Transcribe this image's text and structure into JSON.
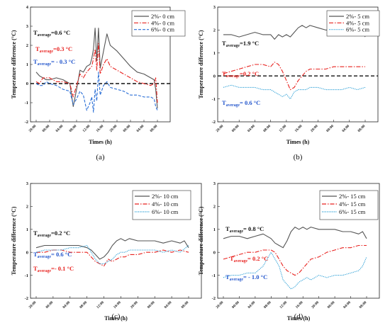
{
  "chart_data": [
    {
      "id": "a",
      "type": "line",
      "panel_label": "(a)",
      "xlabel": "Times (h)",
      "ylabel": "Temperature difference (°C)",
      "ylim": [
        -2,
        4
      ],
      "yticks": [
        -2,
        -1,
        0,
        1,
        2,
        3,
        4
      ],
      "x_ticks": [
        "20:00",
        "00:00",
        "04:00",
        "08:00",
        "12:00",
        "16:00",
        "20:00",
        "00:00",
        "04:00",
        "08:00"
      ],
      "zero_line": true,
      "legend": {
        "placement": "top-right"
      },
      "annotations": [
        {
          "prefix": "T",
          "sub": "average",
          "text": "=0.6 °C",
          "color": "#111111"
        },
        {
          "prefix": "T",
          "sub": "average",
          "text": "=0.3 °C",
          "color": "#e8221f"
        },
        {
          "prefix": "T",
          "sub": "average",
          "text": "= - 0.3 °C",
          "color": "#2255cc"
        }
      ],
      "series": [
        {
          "name": "2%- 0 cm",
          "color": "#555555",
          "dash": "solid",
          "x": [
            0,
            1,
            2,
            3,
            4,
            6,
            8,
            10,
            11,
            12,
            13,
            14,
            15,
            16,
            16.5,
            17,
            17.5,
            18,
            18.5,
            19,
            20,
            21,
            22,
            24,
            26,
            28,
            30,
            32,
            34,
            35,
            35.5,
            36
          ],
          "y": [
            0.6,
            0.4,
            0.3,
            0.2,
            0.2,
            0.3,
            0.2,
            0.0,
            -1.2,
            -0.3,
            0.7,
            0.6,
            0.9,
            1.0,
            1.3,
            1.8,
            2.9,
            1.2,
            2.9,
            0.8,
            1.7,
            2.6,
            2.0,
            1.7,
            1.3,
            0.9,
            0.6,
            0.5,
            0.3,
            0.2,
            -0.3,
            -1.3
          ]
        },
        {
          "name": "4%- 0 cm",
          "color": "#e8221f",
          "dash": "dashdot",
          "x": [
            0,
            1,
            2,
            3,
            4,
            6,
            8,
            10,
            11,
            12,
            13,
            14,
            15,
            16,
            16.5,
            17,
            17.5,
            18,
            18.5,
            19,
            20,
            21,
            22,
            24,
            26,
            28,
            30,
            32,
            34,
            35,
            35.5,
            36
          ],
          "y": [
            0.1,
            0.0,
            0.3,
            0.3,
            0.3,
            0.1,
            0.1,
            0.0,
            -0.7,
            -0.1,
            0.5,
            0.3,
            0.6,
            0.8,
            0.9,
            1.3,
            1.8,
            0.7,
            2.1,
            0.5,
            1.0,
            1.3,
            0.9,
            0.7,
            0.5,
            0.3,
            0.1,
            0.0,
            -0.1,
            0.0,
            0.3,
            -1.0
          ]
        },
        {
          "name": "6%- 0 cm",
          "color": "#2b6fd6",
          "dash": "dashed",
          "x": [
            0,
            1,
            2,
            3,
            4,
            6,
            8,
            10,
            11,
            12,
            13,
            14,
            15,
            16,
            16.5,
            17,
            17.5,
            18,
            18.5,
            19,
            20,
            21,
            22,
            24,
            26,
            28,
            30,
            32,
            34,
            35,
            35.5,
            36
          ],
          "y": [
            0.0,
            -0.1,
            -0.1,
            0.1,
            0.0,
            -0.1,
            -0.3,
            -0.4,
            -1.1,
            -0.8,
            -0.4,
            -0.6,
            -1.4,
            -1.0,
            -0.7,
            -1.5,
            -0.3,
            -0.9,
            0.6,
            -0.6,
            -0.1,
            0.1,
            -0.2,
            -0.3,
            -0.4,
            -0.6,
            -0.6,
            -0.7,
            -0.7,
            -0.8,
            -1.2,
            -1.4
          ]
        }
      ]
    },
    {
      "id": "b",
      "type": "line",
      "panel_label": "(b)",
      "xlabel": "Times (h)",
      "ylabel": "Temperature difference (°C)",
      "ylim": [
        -2,
        3
      ],
      "yticks": [
        -2,
        -1,
        0,
        1,
        2,
        3
      ],
      "x_ticks": [
        "20:00",
        "00:00",
        "04:00",
        "08:00",
        "12:00",
        "16:00",
        "20:00",
        "00:00",
        "04:00",
        "08:00"
      ],
      "zero_line": true,
      "legend": {
        "placement": "top-right"
      },
      "annotations": [
        {
          "prefix": "T",
          "sub": "average",
          "text": "=1.9 °C",
          "color": "#111111"
        },
        {
          "prefix": "T",
          "sub": "average",
          "text": "=0.2 °C",
          "color": "#e8221f"
        },
        {
          "prefix": "T",
          "sub": "average",
          "text": "= 0.6 °C",
          "color": "#2255cc"
        }
      ],
      "series": [
        {
          "name": "2%- 5 cm",
          "color": "#555555",
          "dash": "solid",
          "x": [
            0,
            2,
            4,
            6,
            8,
            10,
            12,
            13,
            14,
            15,
            16,
            17,
            18,
            19,
            20,
            21,
            22,
            24,
            26,
            28,
            30,
            32,
            34,
            35,
            36
          ],
          "y": [
            1.8,
            1.8,
            1.7,
            1.8,
            1.9,
            1.8,
            1.8,
            1.6,
            1.8,
            1.7,
            1.8,
            1.7,
            1.9,
            2.1,
            2.2,
            2.1,
            2.2,
            2.1,
            2.0,
            2.0,
            1.9,
            1.9,
            1.9,
            2.0,
            1.7
          ]
        },
        {
          "name": "4%- 5 cm",
          "color": "#e8221f",
          "dash": "dashdot",
          "x": [
            0,
            2,
            4,
            6,
            8,
            10,
            12,
            13,
            14,
            15,
            16,
            17,
            18,
            19,
            20,
            21,
            22,
            24,
            26,
            28,
            30,
            32,
            34,
            36
          ],
          "y": [
            0.1,
            0.2,
            0.3,
            0.4,
            0.5,
            0.5,
            0.4,
            0.6,
            0.5,
            0.2,
            -0.2,
            -0.6,
            -0.5,
            -0.2,
            0.0,
            0.2,
            0.3,
            0.3,
            0.3,
            0.4,
            0.4,
            0.4,
            0.4,
            0.4
          ]
        },
        {
          "name": "6%- 5 cm",
          "color": "#2b9fd6",
          "dash": "dotted",
          "x": [
            0,
            2,
            4,
            6,
            8,
            10,
            12,
            13,
            14,
            15,
            16,
            17,
            18,
            19,
            20,
            21,
            22,
            24,
            26,
            28,
            30,
            32,
            34,
            36
          ],
          "y": [
            -0.5,
            -0.4,
            -0.5,
            -0.5,
            -0.5,
            -0.6,
            -0.6,
            -0.7,
            -0.8,
            -0.9,
            -0.8,
            -1.0,
            -0.7,
            -0.6,
            -0.6,
            -0.6,
            -0.5,
            -0.5,
            -0.6,
            -0.6,
            -0.6,
            -0.5,
            -0.6,
            -0.5
          ]
        }
      ]
    },
    {
      "id": "c",
      "type": "line",
      "panel_label": "(c)",
      "xlabel": "Times (h)",
      "ylabel": "Temperature difference (°C)",
      "ylim": [
        -2,
        3
      ],
      "yticks": [
        -2,
        -1,
        0,
        1,
        2,
        3
      ],
      "x_ticks": [
        "20:00",
        "00:00",
        "04:00",
        "08:00",
        "12:00",
        "16:00",
        "20:00",
        "00:00",
        "04:00",
        "08:00"
      ],
      "zero_line": false,
      "legend": {
        "placement": "top-right"
      },
      "annotations": [
        {
          "prefix": "T",
          "sub": "average",
          "text": "=0.2 °C",
          "color": "#111111"
        },
        {
          "prefix": "T",
          "sub": "average",
          "text": "= 0.6 °C",
          "color": "#2255cc"
        },
        {
          "prefix": "T",
          "sub": "average",
          "text": "=- 0.1 °C",
          "color": "#e8221f"
        }
      ],
      "series": [
        {
          "name": "2%- 10 cm",
          "color": "#555555",
          "dash": "solid",
          "x": [
            0,
            2,
            4,
            6,
            8,
            10,
            12,
            13,
            14,
            15,
            16,
            17,
            18,
            19,
            20,
            21,
            22,
            24,
            26,
            28,
            30,
            32,
            34,
            35,
            36
          ],
          "y": [
            0.2,
            0.3,
            0.3,
            0.3,
            0.3,
            0.3,
            0.2,
            0.1,
            -0.1,
            -0.3,
            -0.2,
            0.0,
            0.3,
            0.5,
            0.6,
            0.5,
            0.6,
            0.5,
            0.5,
            0.5,
            0.4,
            0.5,
            0.4,
            0.5,
            0.2
          ]
        },
        {
          "name": "4%- 10 cm",
          "color": "#e8221f",
          "dash": "dashdot",
          "x": [
            0,
            2,
            4,
            6,
            8,
            10,
            12,
            13,
            14,
            15,
            16,
            17,
            18,
            19,
            20,
            21,
            22,
            24,
            26,
            28,
            30,
            32,
            34,
            36
          ],
          "y": [
            0.0,
            0.0,
            0.1,
            0.1,
            0.0,
            0.0,
            0.0,
            -0.2,
            -0.4,
            -0.5,
            -0.6,
            -0.3,
            -0.4,
            -0.3,
            -0.2,
            -0.2,
            -0.1,
            -0.1,
            0.0,
            0.0,
            0.1,
            0.0,
            0.1,
            0.0
          ]
        },
        {
          "name": "6%- 10 cm",
          "color": "#2b9fd6",
          "dash": "dotted",
          "x": [
            0,
            2,
            4,
            6,
            8,
            10,
            12,
            13,
            14,
            15,
            16,
            17,
            18,
            19,
            20,
            21,
            22,
            24,
            26,
            28,
            30,
            32,
            34,
            36
          ],
          "y": [
            0.0,
            0.1,
            0.1,
            0.1,
            0.2,
            0.2,
            0.3,
            0.0,
            -0.3,
            -0.5,
            -0.5,
            -0.4,
            -0.3,
            -0.1,
            0.0,
            0.0,
            0.1,
            0.1,
            0.1,
            0.1,
            0.0,
            0.1,
            0.0,
            0.3
          ]
        }
      ]
    },
    {
      "id": "d",
      "type": "line",
      "panel_label": "(d)",
      "xlabel": "Times (h)",
      "ylabel": "Temperature difference (°C)",
      "ylim": [
        -2,
        3
      ],
      "yticks": [
        -2,
        -1,
        0,
        1,
        2,
        3
      ],
      "x_ticks": [
        "20:00",
        "00:00",
        "04:00",
        "08:00",
        "12:00",
        "16:00",
        "20:00",
        "00:00",
        "04:00",
        "08:00"
      ],
      "zero_line": false,
      "legend": {
        "placement": "top-right"
      },
      "annotations": [
        {
          "prefix": "T",
          "sub": "average",
          "text": "= 0.8 °C",
          "color": "#111111"
        },
        {
          "prefix": "T",
          "sub": "average",
          "text": "= 0.2 °C",
          "color": "#e8221f"
        },
        {
          "prefix": "T",
          "sub": "average",
          "text": "= - 1.0 °C",
          "color": "#2255cc"
        }
      ],
      "series": [
        {
          "name": "2%- 15 cm",
          "color": "#555555",
          "dash": "solid",
          "x": [
            0,
            2,
            4,
            6,
            8,
            10,
            12,
            13,
            14,
            15,
            16,
            17,
            18,
            19,
            20,
            21,
            22,
            24,
            26,
            28,
            30,
            32,
            34,
            35,
            36
          ],
          "y": [
            0.6,
            0.7,
            0.7,
            0.6,
            0.7,
            0.8,
            0.6,
            0.4,
            0.3,
            0.2,
            0.5,
            0.9,
            1.1,
            1.0,
            1.1,
            1.0,
            1.1,
            1.0,
            1.0,
            1.0,
            0.9,
            0.9,
            0.8,
            0.9,
            0.6
          ]
        },
        {
          "name": "4%- 15 cm",
          "color": "#e8221f",
          "dash": "dashdot",
          "x": [
            0,
            2,
            4,
            6,
            8,
            10,
            12,
            13,
            14,
            15,
            16,
            17,
            18,
            19,
            20,
            21,
            22,
            24,
            26,
            28,
            30,
            32,
            34,
            36
          ],
          "y": [
            -0.3,
            -0.2,
            -0.1,
            0.0,
            0.0,
            0.1,
            0.1,
            0.0,
            -0.3,
            -0.6,
            -0.8,
            -0.9,
            -1.0,
            -0.9,
            -0.7,
            -0.5,
            -0.3,
            -0.2,
            0.0,
            0.1,
            0.2,
            0.2,
            0.3,
            0.3
          ]
        },
        {
          "name": "6%- 15 cm",
          "color": "#2b9fd6",
          "dash": "dotted",
          "x": [
            0,
            2,
            4,
            6,
            8,
            10,
            12,
            13,
            14,
            15,
            16,
            17,
            18,
            19,
            20,
            21,
            22,
            24,
            26,
            28,
            30,
            32,
            34,
            35,
            36
          ],
          "y": [
            -1.1,
            -1.0,
            -1.0,
            -0.9,
            -0.9,
            -0.6,
            0.0,
            -0.3,
            -0.6,
            -1.2,
            -1.4,
            -1.6,
            -1.5,
            -1.3,
            -1.2,
            -1.1,
            -1.2,
            -1.0,
            -1.1,
            -1.0,
            -1.0,
            -0.9,
            -0.8,
            -0.6,
            -0.2
          ]
        }
      ]
    }
  ]
}
